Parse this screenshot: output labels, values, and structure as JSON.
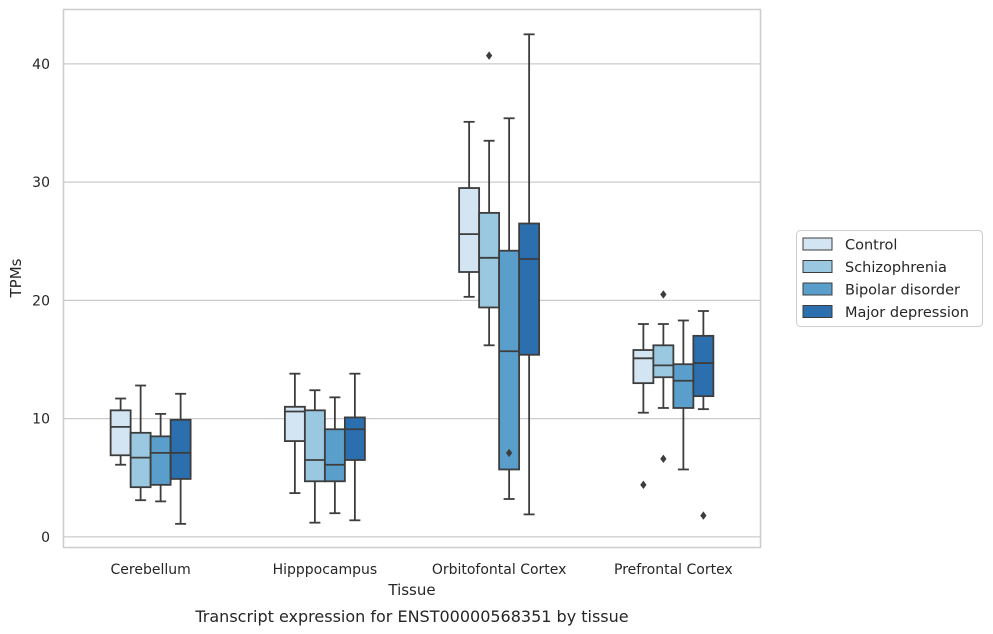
{
  "caption": "Transcript expression for ENST00000568351 by tissue",
  "chart_data": {
    "type": "box",
    "title": "",
    "xlabel": "Tissue",
    "ylabel": "TPMs",
    "ylim": [
      -0.9,
      44.6
    ],
    "yticks": [
      0,
      10,
      20,
      30,
      40
    ],
    "grid": "horizontal",
    "legend_position": "right",
    "categories": [
      "Cerebellum",
      "Hipppocampus",
      "Orbitofontal Cortex",
      "Prefrontal Cortex"
    ],
    "series": [
      {
        "name": "Control",
        "color": "#d3e4f3",
        "boxes": [
          {
            "whislo": 6.1,
            "q1": 6.9,
            "med": 9.3,
            "q3": 10.7,
            "whishi": 11.7,
            "fliers": []
          },
          {
            "whislo": 3.7,
            "q1": 8.1,
            "med": 10.6,
            "q3": 11.0,
            "whishi": 13.8,
            "fliers": []
          },
          {
            "whislo": 20.3,
            "q1": 22.4,
            "med": 25.6,
            "q3": 29.5,
            "whishi": 35.1,
            "fliers": []
          },
          {
            "whislo": 10.5,
            "q1": 13.0,
            "med": 15.1,
            "q3": 15.8,
            "whishi": 18.0,
            "fliers": [
              4.4
            ]
          }
        ]
      },
      {
        "name": "Schizophrenia",
        "color": "#9ac8e0",
        "boxes": [
          {
            "whislo": 3.1,
            "q1": 4.2,
            "med": 6.7,
            "q3": 8.8,
            "whishi": 12.8,
            "fliers": []
          },
          {
            "whislo": 1.2,
            "q1": 4.7,
            "med": 6.5,
            "q3": 10.7,
            "whishi": 12.4,
            "fliers": []
          },
          {
            "whislo": 16.2,
            "q1": 19.4,
            "med": 23.6,
            "q3": 27.4,
            "whishi": 33.5,
            "fliers": [
              40.7
            ]
          },
          {
            "whislo": 10.9,
            "q1": 13.5,
            "med": 14.5,
            "q3": 16.2,
            "whishi": 18.0,
            "fliers": [
              6.6,
              20.5
            ]
          }
        ]
      },
      {
        "name": "Bipolar disorder",
        "color": "#5a9fcc",
        "boxes": [
          {
            "whislo": 3.0,
            "q1": 4.4,
            "med": 7.1,
            "q3": 8.5,
            "whishi": 10.4,
            "fliers": []
          },
          {
            "whislo": 2.0,
            "q1": 4.7,
            "med": 6.1,
            "q3": 9.1,
            "whishi": 11.8,
            "fliers": []
          },
          {
            "whislo": 3.2,
            "q1": 5.7,
            "med": 15.7,
            "q3": 24.2,
            "whishi": 35.4,
            "fliers": [
              7.1
            ]
          },
          {
            "whislo": 5.7,
            "q1": 10.9,
            "med": 13.2,
            "q3": 14.6,
            "whishi": 18.3,
            "fliers": []
          }
        ]
      },
      {
        "name": "Major depression",
        "color": "#2b6fae",
        "boxes": [
          {
            "whislo": 1.1,
            "q1": 4.9,
            "med": 7.1,
            "q3": 9.9,
            "whishi": 12.1,
            "fliers": []
          },
          {
            "whislo": 1.4,
            "q1": 6.5,
            "med": 9.1,
            "q3": 10.1,
            "whishi": 13.8,
            "fliers": []
          },
          {
            "whislo": 1.9,
            "q1": 15.4,
            "med": 23.5,
            "q3": 26.5,
            "whishi": 42.5,
            "fliers": []
          },
          {
            "whislo": 10.8,
            "q1": 11.9,
            "med": 14.7,
            "q3": 17.0,
            "whishi": 19.1,
            "fliers": [
              1.8
            ]
          }
        ]
      }
    ]
  }
}
